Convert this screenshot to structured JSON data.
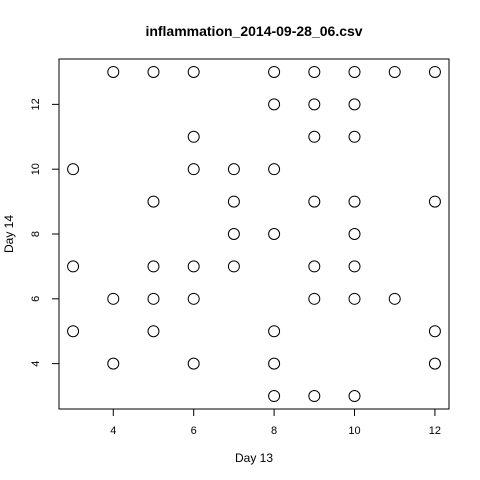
{
  "chart_data": {
    "type": "scatter",
    "title": "inflammation_2014-09-28_06.csv",
    "xlabel": "Day 13",
    "ylabel": "Day 14",
    "xlim": [
      2.65,
      12.35
    ],
    "ylim": [
      2.6,
      13.4
    ],
    "xticks": [
      4,
      6,
      8,
      10,
      12
    ],
    "yticks": [
      4,
      6,
      8,
      10,
      12
    ],
    "grid": false,
    "points": [
      {
        "x": 3,
        "y": 10
      },
      {
        "x": 3,
        "y": 7
      },
      {
        "x": 3,
        "y": 5
      },
      {
        "x": 4,
        "y": 13
      },
      {
        "x": 4,
        "y": 6
      },
      {
        "x": 4,
        "y": 4
      },
      {
        "x": 5,
        "y": 13
      },
      {
        "x": 5,
        "y": 9
      },
      {
        "x": 5,
        "y": 7
      },
      {
        "x": 5,
        "y": 6
      },
      {
        "x": 5,
        "y": 5
      },
      {
        "x": 6,
        "y": 13
      },
      {
        "x": 6,
        "y": 11
      },
      {
        "x": 6,
        "y": 10
      },
      {
        "x": 6,
        "y": 7
      },
      {
        "x": 6,
        "y": 6
      },
      {
        "x": 6,
        "y": 4
      },
      {
        "x": 7,
        "y": 10
      },
      {
        "x": 7,
        "y": 9
      },
      {
        "x": 7,
        "y": 8
      },
      {
        "x": 7,
        "y": 7
      },
      {
        "x": 8,
        "y": 13
      },
      {
        "x": 8,
        "y": 12
      },
      {
        "x": 8,
        "y": 10
      },
      {
        "x": 8,
        "y": 8
      },
      {
        "x": 8,
        "y": 5
      },
      {
        "x": 8,
        "y": 4
      },
      {
        "x": 8,
        "y": 3
      },
      {
        "x": 9,
        "y": 13
      },
      {
        "x": 9,
        "y": 12
      },
      {
        "x": 9,
        "y": 11
      },
      {
        "x": 9,
        "y": 9
      },
      {
        "x": 9,
        "y": 7
      },
      {
        "x": 9,
        "y": 6
      },
      {
        "x": 9,
        "y": 3
      },
      {
        "x": 10,
        "y": 13
      },
      {
        "x": 10,
        "y": 12
      },
      {
        "x": 10,
        "y": 11
      },
      {
        "x": 10,
        "y": 9
      },
      {
        "x": 10,
        "y": 8
      },
      {
        "x": 10,
        "y": 7
      },
      {
        "x": 10,
        "y": 6
      },
      {
        "x": 10,
        "y": 3
      },
      {
        "x": 11,
        "y": 13
      },
      {
        "x": 11,
        "y": 6
      },
      {
        "x": 12,
        "y": 13
      },
      {
        "x": 12,
        "y": 9
      },
      {
        "x": 12,
        "y": 5
      },
      {
        "x": 12,
        "y": 4
      }
    ]
  }
}
